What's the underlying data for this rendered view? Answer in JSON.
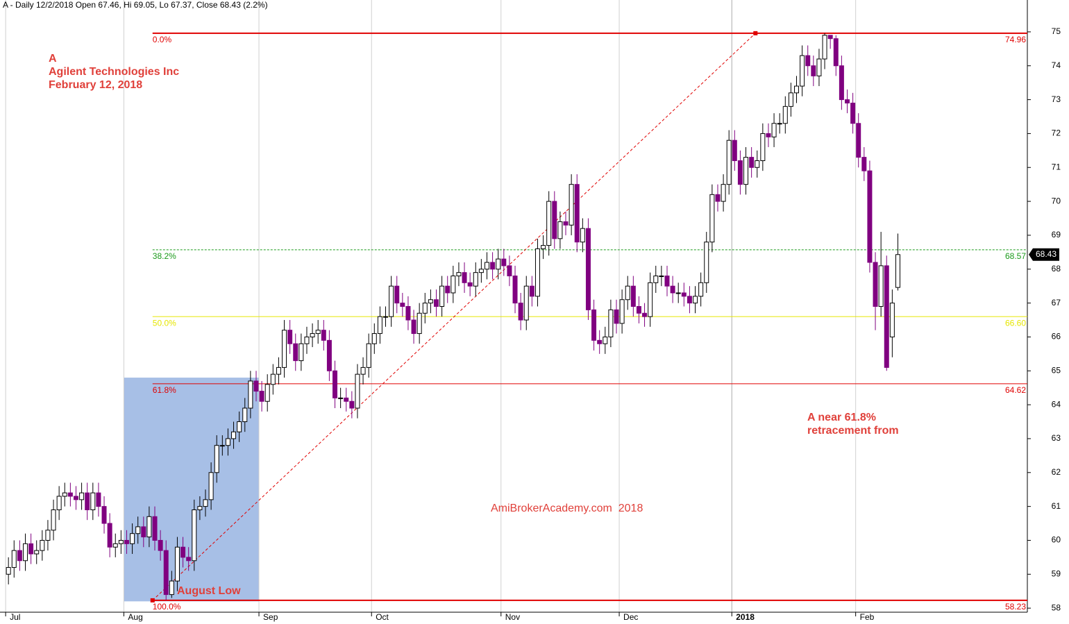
{
  "chart_data": {
    "type": "candlestick",
    "header": "A - Daily 12/2/2018 Open 67.46, Hi 69.05, Lo 67.37, Close 68.43 (2.2%)",
    "annotations": [
      "A",
      "Agilent Technologies Inc",
      "February 12, 2018",
      "August Low",
      "A near 61.8%",
      "retracement from",
      "AmiBrokerAcademy.com  2018"
    ],
    "up_color": "#ffffff",
    "down_color": "#800080",
    "open": [
      59.0,
      59.2,
      59.7,
      59.4,
      59.9,
      59.6,
      59.7,
      60.0,
      60.3,
      60.9,
      61.3,
      61.4,
      61.3,
      61.2,
      61.4,
      60.9,
      61.4,
      61.0,
      60.5,
      59.8,
      59.9,
      60.0,
      59.9,
      60.2,
      60.4,
      60.1,
      60.7,
      60.0,
      59.7,
      58.4,
      58.8,
      59.8,
      59.5,
      59.4,
      60.9,
      61.0,
      61.2,
      62.0,
      62.8,
      62.8,
      63.0,
      63.2,
      63.5,
      63.9,
      64.7,
      64.4,
      64.1,
      64.6,
      64.9,
      65.1,
      66.2,
      65.8,
      65.3,
      65.8,
      66.0,
      66.1,
      66.2,
      65.9,
      65.0,
      64.2,
      64.2,
      64.1,
      63.9,
      64.9,
      65.1,
      65.8,
      66.1,
      66.6,
      66.6,
      67.5,
      67.0,
      66.9,
      66.5,
      66.1,
      66.7,
      67.0,
      67.1,
      66.9,
      67.5,
      67.3,
      67.8,
      67.9,
      67.6,
      67.5,
      67.9,
      68.0,
      68.2,
      68.0,
      68.3,
      68.1,
      67.8,
      67.0,
      66.5,
      67.5,
      67.2,
      68.6,
      68.7,
      70.0,
      68.9,
      69.4,
      69.3,
      70.5,
      68.8,
      69.2,
      66.8,
      65.9,
      65.8,
      66.0,
      66.8,
      66.4,
      67.1,
      67.5,
      66.9,
      66.7,
      66.6,
      67.6,
      67.8,
      67.8,
      67.5,
      67.3,
      67.3,
      67.2,
      67.0,
      67.2,
      67.6,
      68.8,
      70.2,
      70.0,
      70.5,
      71.8,
      71.2,
      70.5,
      71.3,
      71.0,
      71.2,
      72.0,
      71.9,
      72.3,
      72.3,
      72.8,
      73.2,
      73.4,
      74.3,
      74.0,
      73.7,
      74.2,
      74.9,
      74.8,
      74.0,
      73.0,
      72.9,
      72.3,
      71.3,
      70.9,
      68.2,
      66.9,
      68.1,
      66.0,
      67.46
    ],
    "high": [
      59.5,
      60.0,
      60.0,
      60.2,
      60.2,
      60.0,
      60.3,
      60.6,
      61.2,
      61.6,
      61.7,
      61.7,
      61.6,
      61.7,
      61.7,
      61.7,
      61.7,
      61.3,
      60.8,
      60.2,
      60.3,
      60.3,
      60.5,
      60.7,
      60.7,
      61.0,
      61.0,
      60.3,
      60.0,
      59.1,
      60.1,
      60.1,
      59.8,
      61.2,
      61.3,
      61.5,
      62.3,
      63.1,
      63.1,
      63.3,
      63.5,
      63.8,
      64.2,
      65.0,
      65.0,
      64.7,
      64.9,
      65.2,
      65.4,
      66.5,
      66.5,
      66.1,
      66.1,
      66.3,
      66.4,
      66.5,
      66.5,
      66.2,
      65.3,
      64.5,
      64.5,
      64.4,
      65.2,
      65.4,
      66.1,
      66.4,
      66.9,
      66.9,
      67.8,
      67.8,
      67.3,
      67.2,
      66.8,
      67.0,
      67.3,
      67.4,
      67.4,
      67.8,
      67.8,
      68.1,
      68.2,
      68.2,
      67.9,
      68.2,
      68.3,
      68.5,
      68.5,
      68.6,
      68.6,
      68.4,
      68.1,
      67.3,
      67.8,
      67.8,
      68.9,
      69.0,
      70.3,
      70.3,
      69.7,
      69.7,
      70.8,
      70.8,
      69.5,
      69.5,
      67.1,
      66.2,
      66.3,
      67.1,
      67.1,
      67.4,
      67.8,
      67.8,
      67.2,
      67.0,
      67.9,
      68.1,
      68.1,
      68.1,
      67.8,
      67.6,
      67.6,
      67.5,
      67.5,
      67.9,
      69.1,
      70.5,
      70.5,
      70.8,
      72.1,
      72.1,
      71.5,
      71.6,
      71.6,
      71.5,
      72.3,
      72.3,
      72.6,
      72.6,
      73.1,
      73.5,
      73.7,
      74.6,
      74.6,
      74.3,
      74.5,
      74.96,
      74.9,
      74.9,
      74.3,
      73.3,
      73.2,
      72.6,
      71.6,
      71.2,
      68.5,
      69.1,
      68.4,
      67.4,
      69.05
    ],
    "low": [
      58.7,
      58.9,
      59.1,
      59.1,
      59.3,
      59.3,
      59.4,
      59.7,
      60.0,
      60.6,
      61.0,
      61.0,
      60.9,
      60.9,
      60.6,
      60.6,
      60.7,
      60.2,
      59.5,
      59.5,
      59.6,
      59.6,
      59.6,
      59.9,
      59.8,
      59.8,
      59.7,
      59.4,
      58.23,
      58.3,
      58.5,
      59.2,
      59.1,
      59.1,
      60.6,
      60.7,
      60.9,
      61.7,
      62.5,
      62.5,
      62.7,
      62.9,
      63.2,
      63.6,
      64.1,
      63.8,
      63.8,
      64.3,
      64.6,
      64.8,
      65.5,
      65.0,
      65.0,
      65.5,
      65.7,
      65.8,
      65.6,
      64.7,
      63.9,
      63.9,
      63.8,
      63.6,
      63.6,
      64.6,
      64.8,
      65.5,
      65.8,
      66.3,
      66.3,
      66.7,
      66.6,
      66.2,
      65.8,
      65.8,
      66.4,
      66.7,
      66.6,
      66.6,
      67.0,
      67.0,
      67.5,
      67.3,
      67.2,
      67.2,
      67.6,
      67.7,
      67.7,
      67.7,
      67.8,
      67.5,
      66.7,
      66.2,
      66.2,
      66.9,
      66.9,
      68.3,
      68.4,
      68.6,
      68.6,
      69.0,
      69.0,
      68.5,
      68.5,
      66.5,
      65.6,
      65.5,
      65.5,
      65.7,
      66.1,
      66.1,
      66.8,
      66.6,
      66.4,
      66.3,
      66.3,
      67.3,
      67.5,
      67.2,
      67.0,
      67.0,
      66.9,
      66.7,
      66.7,
      66.9,
      67.3,
      68.5,
      69.7,
      69.7,
      70.2,
      70.9,
      70.2,
      70.2,
      70.7,
      70.7,
      70.9,
      71.6,
      71.6,
      72.0,
      72.0,
      72.5,
      72.9,
      73.1,
      73.7,
      73.4,
      73.4,
      73.9,
      74.5,
      73.7,
      72.7,
      72.6,
      72.0,
      71.0,
      70.6,
      67.9,
      66.2,
      66.6,
      65.0,
      65.4,
      67.37
    ],
    "close": [
      59.2,
      59.7,
      59.4,
      59.9,
      59.6,
      59.7,
      60.0,
      60.3,
      60.9,
      61.3,
      61.4,
      61.3,
      61.2,
      61.4,
      60.9,
      61.4,
      61.0,
      60.5,
      59.8,
      59.9,
      60.0,
      59.9,
      60.2,
      60.4,
      60.1,
      60.7,
      60.0,
      59.7,
      58.4,
      58.8,
      59.8,
      59.5,
      59.4,
      60.9,
      61.0,
      61.2,
      62.0,
      62.8,
      62.8,
      63.0,
      63.2,
      63.5,
      63.9,
      64.7,
      64.4,
      64.1,
      64.6,
      64.9,
      65.1,
      66.2,
      65.8,
      65.3,
      65.8,
      66.0,
      66.1,
      66.2,
      65.9,
      65.0,
      64.2,
      64.2,
      64.1,
      63.9,
      64.9,
      65.1,
      65.8,
      66.1,
      66.6,
      66.6,
      67.5,
      67.0,
      66.9,
      66.5,
      66.1,
      66.7,
      67.0,
      67.1,
      66.9,
      67.5,
      67.3,
      67.8,
      67.9,
      67.6,
      67.5,
      67.9,
      68.0,
      68.2,
      68.0,
      68.3,
      68.1,
      67.8,
      67.0,
      66.5,
      67.5,
      67.2,
      68.6,
      68.7,
      70.0,
      68.9,
      69.4,
      69.3,
      70.5,
      68.8,
      69.2,
      66.8,
      65.9,
      65.8,
      66.0,
      66.8,
      66.4,
      67.1,
      67.5,
      66.9,
      66.7,
      66.6,
      67.6,
      67.8,
      67.8,
      67.5,
      67.3,
      67.3,
      67.2,
      67.0,
      67.2,
      67.6,
      68.8,
      70.2,
      70.0,
      70.5,
      71.8,
      71.2,
      70.5,
      71.3,
      71.0,
      71.2,
      72.0,
      71.9,
      72.3,
      72.3,
      72.8,
      73.2,
      73.4,
      74.3,
      74.0,
      73.7,
      74.2,
      74.9,
      74.8,
      74.0,
      73.0,
      72.9,
      72.3,
      71.3,
      70.9,
      68.2,
      66.9,
      68.1,
      65.1,
      67.0,
      68.43
    ],
    "xlim": [
      -1.5,
      181
    ],
    "xticks": [
      {
        "value": -0.5,
        "label": "Jul"
      },
      {
        "value": 20.5,
        "label": "Aug"
      },
      {
        "value": 44.5,
        "label": "Sep"
      },
      {
        "value": 64.5,
        "label": "Oct"
      },
      {
        "value": 87.5,
        "label": "Nov"
      },
      {
        "value": 108.5,
        "label": "Dec"
      },
      {
        "value": 128.5,
        "label": "2018"
      },
      {
        "value": 150.5,
        "label": "Feb"
      }
    ],
    "ylim": [
      57.88,
      75.94
    ],
    "yticks": [
      58,
      59,
      60,
      61,
      62,
      63,
      64,
      65,
      66,
      67,
      68,
      69,
      70,
      71,
      72,
      73,
      74,
      75
    ],
    "grid": true,
    "fib_levels": {
      "names": [
        "0.0%",
        "38.2%",
        "50.0%",
        "61.8%",
        "100.0%"
      ],
      "values": [
        74.96,
        68.57,
        66.6,
        64.62,
        58.23
      ],
      "value_labels": [
        "74.96",
        "68.57",
        "66.60",
        "64.62",
        "58.23"
      ],
      "colors": [
        "#e00000",
        "#1a9a1a",
        "#e6e600",
        "#e00000",
        "#e00000"
      ],
      "start": 25.6
    },
    "trendline": {
      "x": [
        25.6,
        132.7
      ],
      "y": [
        58.23,
        74.96
      ],
      "color": "#e00000"
    },
    "shaded_range": {
      "x": [
        20.5,
        44.5
      ],
      "y": [
        58.2,
        64.8
      ],
      "color": "#a7bfe6"
    }
  }
}
